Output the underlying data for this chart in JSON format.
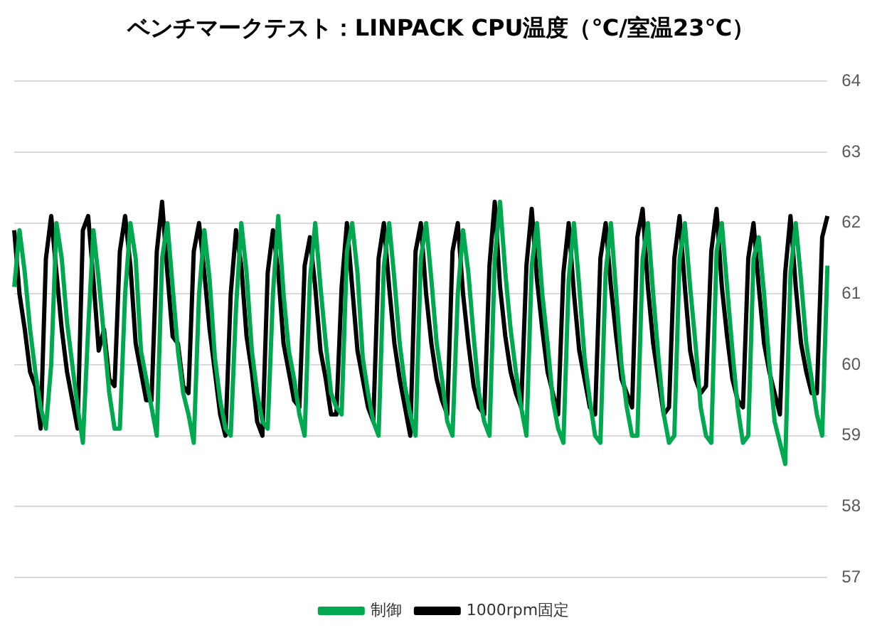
{
  "chart_data": {
    "type": "line",
    "title": "ベンチマークテスト：LINPACK CPU温度（℃/室温23℃）",
    "categories": [
      null,
      null,
      null,
      null,
      null,
      null,
      null,
      null,
      null,
      null,
      null,
      null,
      null,
      null,
      null,
      null,
      null,
      null,
      null,
      null,
      null,
      null,
      null,
      null,
      null,
      null,
      null,
      null,
      null,
      null,
      null,
      null,
      null,
      null,
      null,
      null,
      null,
      null,
      null,
      null,
      null,
      null,
      null,
      null,
      null,
      null,
      null,
      null,
      null,
      null,
      null,
      null,
      null,
      null,
      null,
      null,
      null,
      null,
      null,
      null,
      null,
      null,
      null,
      null,
      null,
      null,
      null,
      null,
      null,
      null,
      null,
      null,
      null,
      null,
      null,
      null,
      null,
      null,
      null,
      null,
      null,
      null,
      null,
      null,
      null,
      null,
      null,
      null,
      null,
      null,
      null,
      null,
      null,
      null,
      null,
      null,
      null,
      null,
      null,
      null,
      null,
      null,
      null,
      null,
      null,
      null,
      null,
      null,
      null,
      null,
      null,
      null,
      null,
      null,
      null,
      null,
      null,
      null,
      null,
      null,
      null,
      null,
      null,
      null,
      null,
      null,
      null,
      null,
      null,
      null,
      null,
      null,
      null,
      null,
      null,
      null,
      null,
      null,
      null,
      null,
      null,
      null,
      null,
      null,
      null,
      null,
      null,
      null,
      null,
      null,
      null,
      null,
      null,
      null,
      null
    ],
    "series": [
      {
        "name": "制御",
        "color": "#00a850",
        "values": [
          61.1,
          61.9,
          61.3,
          60.5,
          59.9,
          59.4,
          59.1,
          60.0,
          62.0,
          61.5,
          60.6,
          60.0,
          59.4,
          58.9,
          60.5,
          61.9,
          61.2,
          60.4,
          59.6,
          59.1,
          59.1,
          61.0,
          62.0,
          61.5,
          60.2,
          59.8,
          59.4,
          59.0,
          61.5,
          62.0,
          61.1,
          60.2,
          59.6,
          59.3,
          58.9,
          61.0,
          61.9,
          61.2,
          60.1,
          59.5,
          59.1,
          59.0,
          60.8,
          62.0,
          61.3,
          60.2,
          59.6,
          59.2,
          59.1,
          61.0,
          62.1,
          61.0,
          60.2,
          59.8,
          59.3,
          59.0,
          61.2,
          62.0,
          61.1,
          60.3,
          59.6,
          59.4,
          59.3,
          61.6,
          62.0,
          61.3,
          60.1,
          59.6,
          59.2,
          59.0,
          61.4,
          62.0,
          61.2,
          60.3,
          59.7,
          59.3,
          59.0,
          61.5,
          62.0,
          61.2,
          60.3,
          59.8,
          59.2,
          59.0,
          61.0,
          61.9,
          61.3,
          60.4,
          59.6,
          59.2,
          59.0,
          61.5,
          62.3,
          61.3,
          60.5,
          59.9,
          59.4,
          59.0,
          61.4,
          62.0,
          61.0,
          60.3,
          59.5,
          59.1,
          58.9,
          61.2,
          62.0,
          61.1,
          60.1,
          59.5,
          59.0,
          58.9,
          61.3,
          62.0,
          61.0,
          60.0,
          59.4,
          59.0,
          59.0,
          61.5,
          62.0,
          61.0,
          60.1,
          59.3,
          58.9,
          59.0,
          61.5,
          62.0,
          61.1,
          60.3,
          59.4,
          59.0,
          58.9,
          61.6,
          62.0,
          61.1,
          60.2,
          59.4,
          58.9,
          59.0,
          61.5,
          61.8,
          61.0,
          60.0,
          59.2,
          58.9,
          58.6,
          61.3,
          62.0,
          61.2,
          60.3,
          59.8,
          59.3,
          59.0,
          61.4
        ]
      },
      {
        "name": "1000rpm固定",
        "color": "#000000",
        "values": [
          61.9,
          61.0,
          60.5,
          59.9,
          59.7,
          59.1,
          61.5,
          62.1,
          61.3,
          60.5,
          59.9,
          59.5,
          59.1,
          61.9,
          62.1,
          61.2,
          60.2,
          60.5,
          59.8,
          59.7,
          61.6,
          62.1,
          61.4,
          60.3,
          59.9,
          59.5,
          59.5,
          61.6,
          62.3,
          61.3,
          60.4,
          60.3,
          59.7,
          59.6,
          61.6,
          62.0,
          61.3,
          60.5,
          59.9,
          59.3,
          59.0,
          61.0,
          61.9,
          61.4,
          60.4,
          59.9,
          59.2,
          59.0,
          61.3,
          61.9,
          61.3,
          60.3,
          59.9,
          59.5,
          59.4,
          61.4,
          61.8,
          61.1,
          60.2,
          59.8,
          59.3,
          59.3,
          61.1,
          62.0,
          61.1,
          60.2,
          59.8,
          59.4,
          59.2,
          61.5,
          62.0,
          61.1,
          60.3,
          59.8,
          59.4,
          59.0,
          61.6,
          62.0,
          61.0,
          60.3,
          59.8,
          59.5,
          59.3,
          61.6,
          62.0,
          61.0,
          60.3,
          59.7,
          59.4,
          59.3,
          61.4,
          62.3,
          61.1,
          60.4,
          59.9,
          59.6,
          59.4,
          61.4,
          62.2,
          61.2,
          60.5,
          59.9,
          59.6,
          59.3,
          61.3,
          62.0,
          61.0,
          60.2,
          59.8,
          59.4,
          59.3,
          61.5,
          62.0,
          61.1,
          60.4,
          59.8,
          59.6,
          59.4,
          61.8,
          62.2,
          61.1,
          60.3,
          59.8,
          59.3,
          59.4,
          61.5,
          62.1,
          61.1,
          60.2,
          59.8,
          59.6,
          59.7,
          61.6,
          62.2,
          61.1,
          60.4,
          59.8,
          59.5,
          59.4,
          61.5,
          62.0,
          61.1,
          60.3,
          59.9,
          59.6,
          59.3,
          61.3,
          62.1,
          61.1,
          60.3,
          59.9,
          59.6,
          59.6,
          61.8,
          62.1
        ]
      }
    ],
    "ylim": [
      57,
      64
    ],
    "yticks": [
      57,
      58,
      59,
      60,
      61,
      62,
      63,
      64
    ],
    "grid": "y",
    "legend": "bottom",
    "marker": "none",
    "line_style": "solid"
  }
}
